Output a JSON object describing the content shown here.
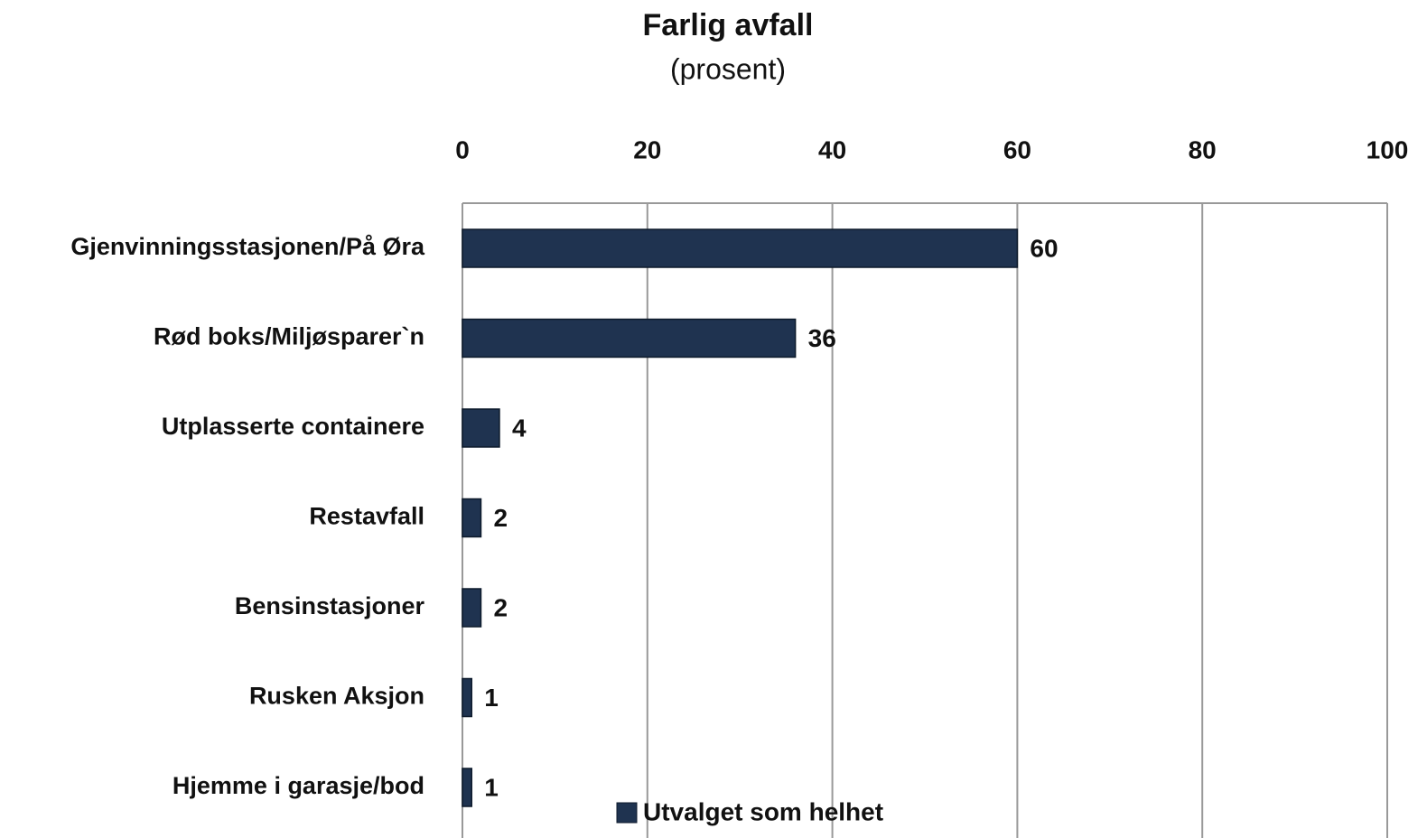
{
  "chart_data": {
    "type": "bar",
    "orientation": "horizontal",
    "title": "Farlig avfall",
    "subtitle": "(prosent)",
    "categories": [
      "Gjenvinningsstasjonen/På Øra",
      "Rød boks/Miljøsparer`n",
      "Utplasserte containere",
      "Restavfall",
      "Bensinstasjoner",
      "Rusken Aksjon",
      "Hjemme i garasje/bod"
    ],
    "series": [
      {
        "name": "Utvalget som helhet",
        "color": "#1f3350",
        "values": [
          60,
          36,
          4,
          2,
          2,
          1,
          1
        ]
      }
    ],
    "xlim": [
      0,
      100
    ],
    "xticks": [
      0,
      20,
      40,
      60,
      80,
      100
    ],
    "grid": true,
    "legend": "bottom"
  }
}
